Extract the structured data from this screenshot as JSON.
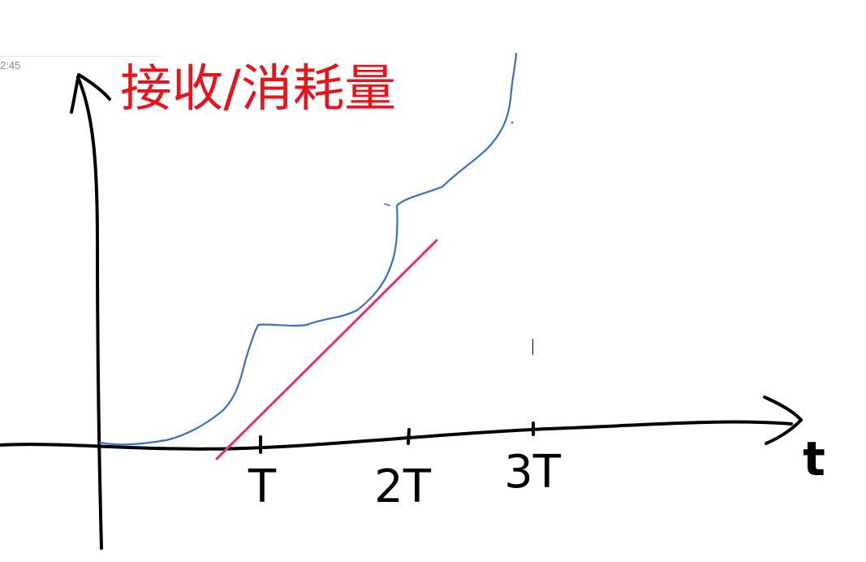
{
  "toolbar": {
    "time": "2:45"
  },
  "diagram": {
    "title": "接收/消耗量",
    "x_axis_label": "t",
    "ticks": [
      "T",
      "2T",
      "3T"
    ],
    "colors": {
      "axes": "#000000",
      "receive_curve": "#3a6fc4",
      "consume_line": "#ee2a7b",
      "title": "#e8141c"
    }
  }
}
